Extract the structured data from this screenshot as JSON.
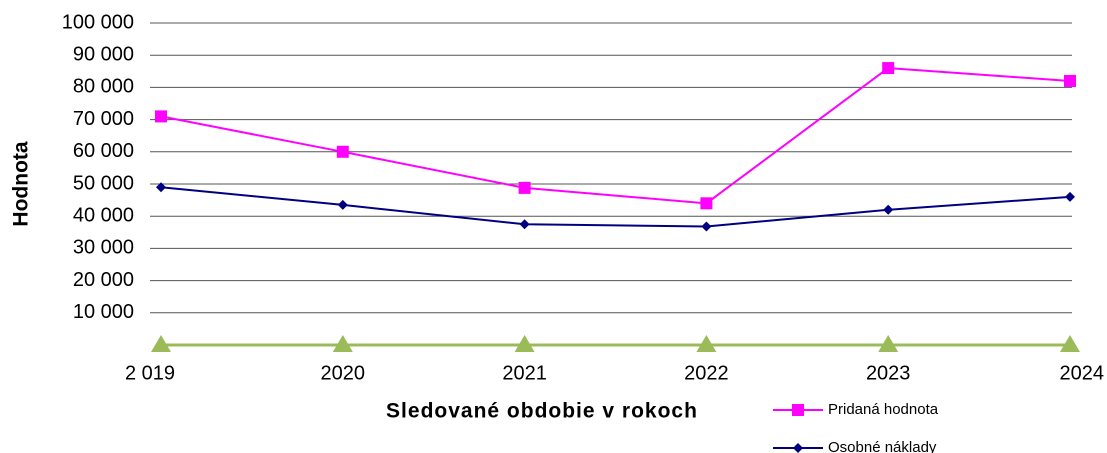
{
  "chart_data": {
    "type": "line",
    "y_label": "Hodnota",
    "x_label": "Sledované obdobie v rokoch",
    "categories": [
      "2 019",
      "2020",
      "2021",
      "2022",
      "2023",
      "2024"
    ],
    "series": [
      {
        "name": "Pridaná hodnota",
        "color": "#ff00ff",
        "marker": "square",
        "values": [
          71000,
          60000,
          48800,
          44000,
          86000,
          82000
        ]
      },
      {
        "name": "Osobné náklady",
        "color": "#000080",
        "marker": "diamond",
        "values": [
          49000,
          43500,
          37500,
          36800,
          42000,
          46000
        ]
      },
      {
        "color": "#9bbb59",
        "marker": "triangle",
        "values": [
          0,
          0,
          0,
          0,
          0,
          0
        ]
      }
    ],
    "ylim": [
      0,
      100000
    ],
    "yticks": [
      {
        "value": 10000,
        "label": "10 000"
      },
      {
        "value": 20000,
        "label": "20 000"
      },
      {
        "value": 30000,
        "label": "30 000"
      },
      {
        "value": 40000,
        "label": "40 000"
      },
      {
        "value": 50000,
        "label": "50 000"
      },
      {
        "value": 60000,
        "label": "60 000"
      },
      {
        "value": 70000,
        "label": "70 000"
      },
      {
        "value": 80000,
        "label": "80 000"
      },
      {
        "value": 90000,
        "label": "90 000"
      },
      {
        "value": 100000,
        "label": "100 000"
      }
    ],
    "grid": true
  }
}
